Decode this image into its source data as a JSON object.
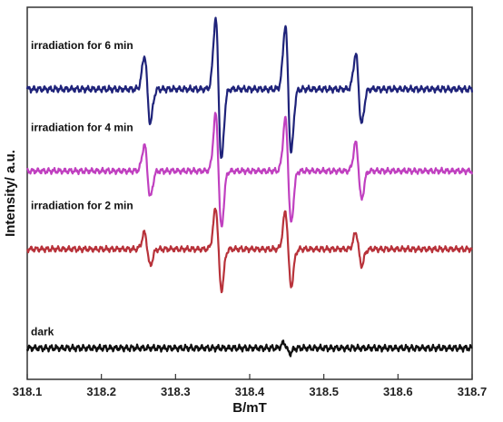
{
  "chart_data": {
    "type": "line",
    "xlabel": "B/mT",
    "ylabel": "Intensity/ a.u.",
    "xlim": [
      318.1,
      318.7
    ],
    "ylim": [
      0,
      5
    ],
    "x_ticks": [
      318.1,
      318.2,
      318.3,
      318.4,
      318.5,
      318.6,
      318.7
    ],
    "x_tick_labels": [
      "318.1",
      "318.2",
      "318.3",
      "318.4",
      "318.5",
      "318.6",
      "318.7"
    ],
    "grid": false,
    "legend": "none",
    "y_tick_labels_shown": false,
    "series": [
      {
        "name": "irradiation for 6 min",
        "color": "#1f237a",
        "baseline": 3.9,
        "noise": 0.05,
        "peaks": [
          {
            "x": 318.262,
            "amp": 0.45
          },
          {
            "x": 318.358,
            "amp": 0.95
          },
          {
            "x": 318.452,
            "amp": 0.85
          },
          {
            "x": 318.547,
            "amp": 0.47
          }
        ]
      },
      {
        "name": "irradiation for 4 min",
        "color": "#c040c0",
        "baseline": 2.8,
        "noise": 0.045,
        "peaks": [
          {
            "x": 318.262,
            "amp": 0.35
          },
          {
            "x": 318.358,
            "amp": 0.76
          },
          {
            "x": 318.452,
            "amp": 0.7
          },
          {
            "x": 318.547,
            "amp": 0.38
          }
        ]
      },
      {
        "name": "irradiation for 2 min",
        "color": "#b8323a",
        "baseline": 1.75,
        "noise": 0.045,
        "peaks": [
          {
            "x": 318.262,
            "amp": 0.22
          },
          {
            "x": 318.358,
            "amp": 0.55
          },
          {
            "x": 318.452,
            "amp": 0.5
          },
          {
            "x": 318.547,
            "amp": 0.22
          }
        ]
      },
      {
        "name": "dark",
        "color": "#111111",
        "baseline": 0.42,
        "noise": 0.05,
        "peaks": [
          {
            "x": 318.45,
            "amp": 0.07
          }
        ]
      }
    ],
    "peak_half_width_mT": 0.004
  }
}
